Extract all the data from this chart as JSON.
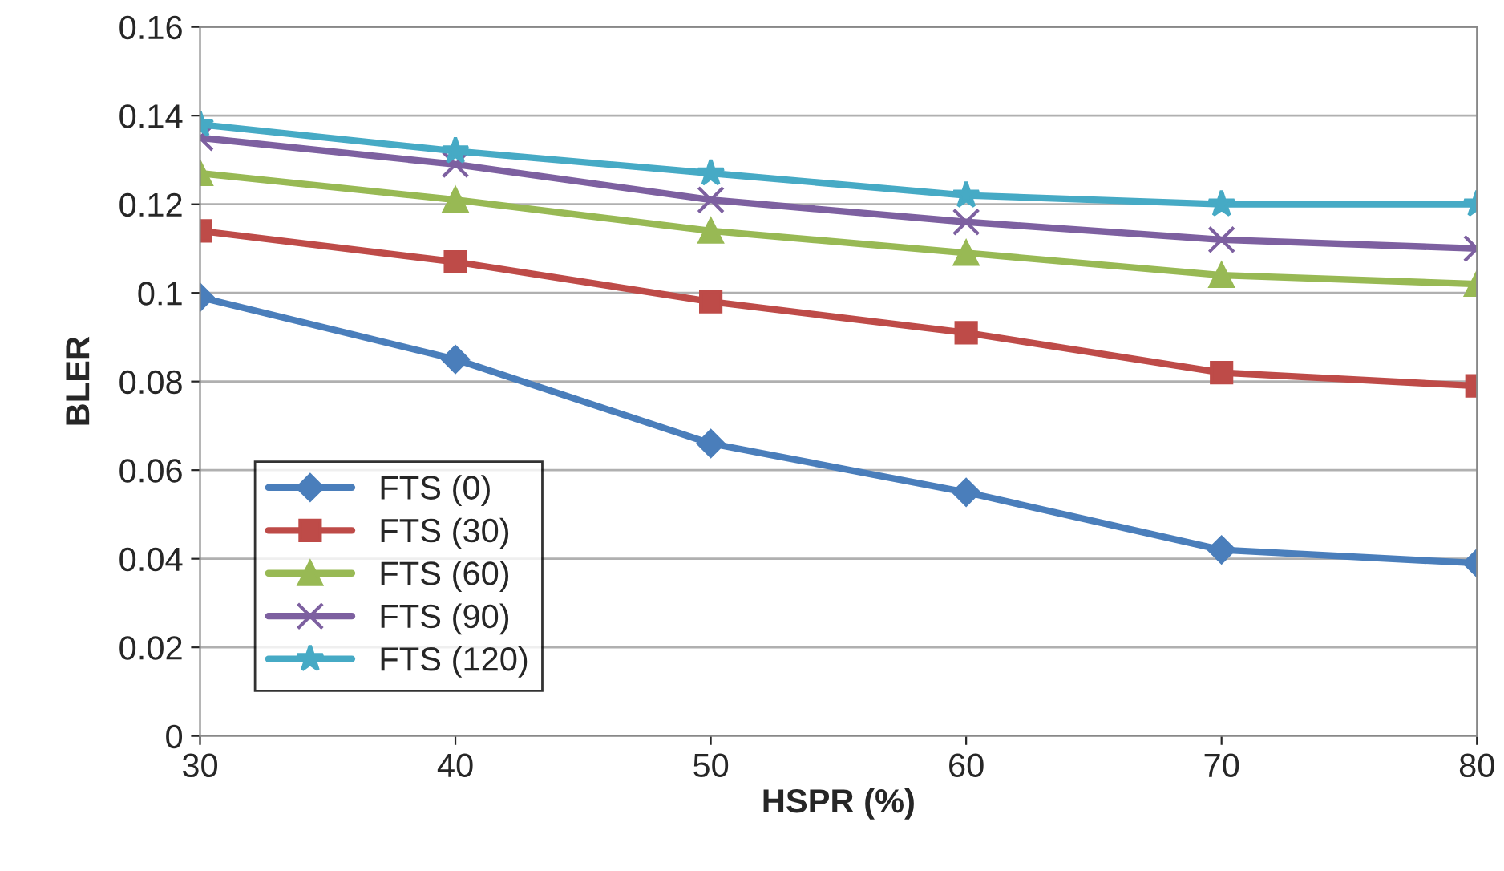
{
  "chart_data": {
    "type": "line",
    "xlabel": "HSPR (%)",
    "ylabel": "BLER",
    "x": [
      30,
      40,
      50,
      60,
      70,
      80
    ],
    "xlim": [
      30,
      80
    ],
    "xticks": [
      30,
      40,
      50,
      60,
      70,
      80
    ],
    "ylim": [
      0,
      0.16
    ],
    "yticks": [
      0,
      0.02,
      0.04,
      0.06,
      0.08,
      {
        "value": 0.1,
        "label": "0.1"
      },
      0.12,
      0.14,
      0.16
    ],
    "grid": "y",
    "legend": "bottom left",
    "series": [
      {
        "name": "FTS (0)",
        "color": "#4a7ebb",
        "marker": "diamond",
        "values": [
          0.099,
          0.085,
          0.066,
          0.055,
          0.042,
          0.039
        ]
      },
      {
        "name": "FTS (30)",
        "color": "#be4b48",
        "marker": "square",
        "values": [
          0.114,
          0.107,
          0.098,
          0.091,
          0.082,
          0.079
        ]
      },
      {
        "name": "FTS (60)",
        "color": "#98b954",
        "marker": "triangle",
        "values": [
          0.127,
          0.121,
          0.114,
          0.109,
          0.104,
          0.102
        ]
      },
      {
        "name": "FTS (90)",
        "color": "#7d60a0",
        "marker": "cross",
        "values": [
          0.135,
          0.129,
          0.121,
          0.116,
          0.112,
          0.11
        ]
      },
      {
        "name": "FTS (120)",
        "color": "#46aac5",
        "marker": "star",
        "values": [
          0.138,
          0.132,
          0.127,
          0.122,
          0.12,
          0.12
        ]
      }
    ]
  }
}
